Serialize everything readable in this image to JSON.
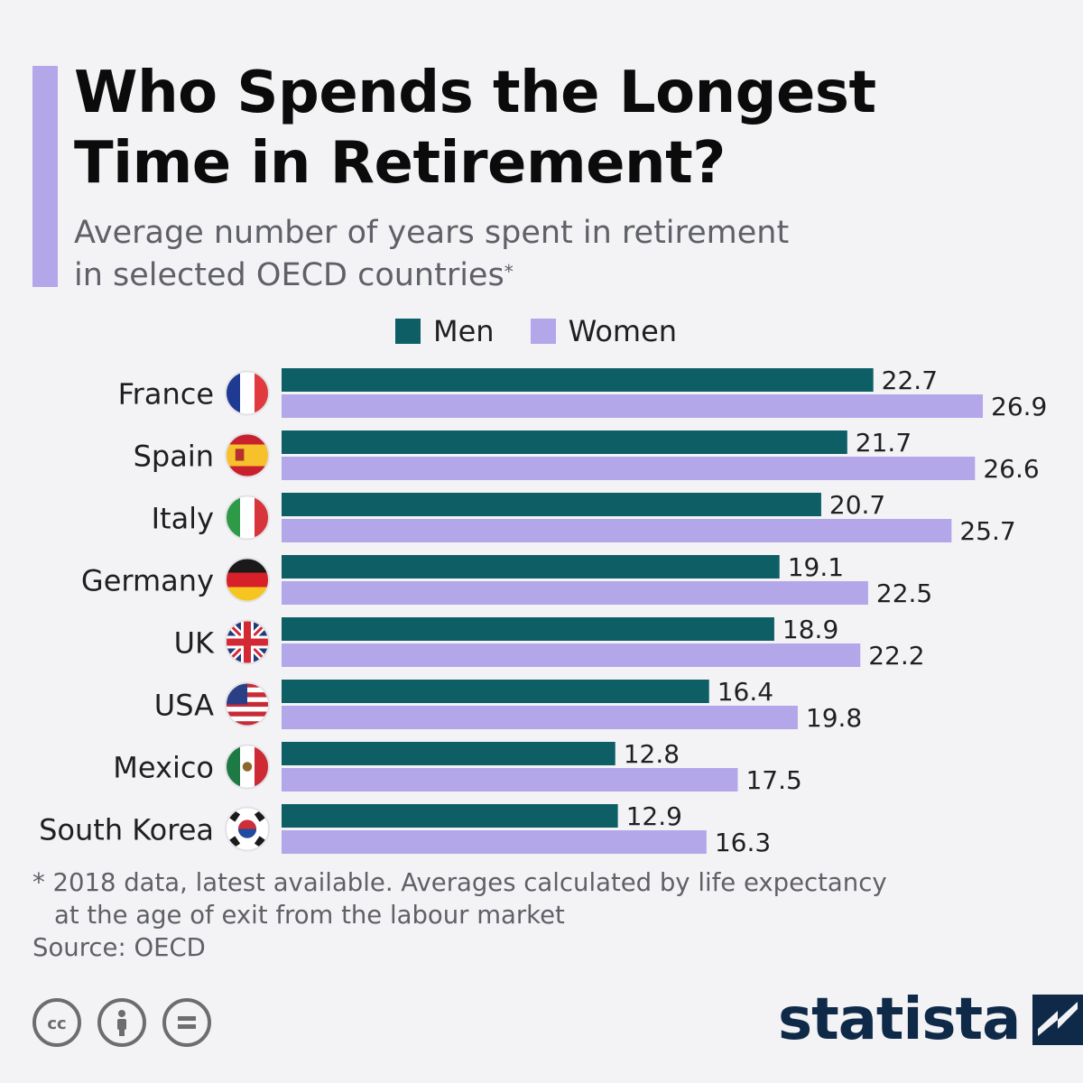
{
  "header": {
    "title_line1": "Who Spends the Longest",
    "title_line2": "Time in Retirement?",
    "subtitle_line1": "Average number of years spent in retirement",
    "subtitle_line2": "in selected OECD countries",
    "subtitle_marker": "*"
  },
  "colors": {
    "men": "#0e5e66",
    "women": "#b3a6e9",
    "accent": "#b3a6e9",
    "brand": "#0f2a49"
  },
  "chart_data": {
    "type": "bar",
    "orientation": "horizontal",
    "categories": [
      "France",
      "Spain",
      "Italy",
      "Germany",
      "UK",
      "USA",
      "Mexico",
      "South Korea"
    ],
    "series": [
      {
        "name": "Men",
        "values": [
          22.7,
          21.7,
          20.7,
          19.1,
          18.9,
          16.4,
          12.8,
          12.9
        ]
      },
      {
        "name": "Women",
        "values": [
          26.9,
          26.6,
          25.7,
          22.5,
          22.2,
          19.8,
          17.5,
          16.3
        ]
      }
    ],
    "flags": [
      "france-flag-icon",
      "spain-flag-icon",
      "italy-flag-icon",
      "germany-flag-icon",
      "uk-flag-icon",
      "usa-flag-icon",
      "mexico-flag-icon",
      "south-korea-flag-icon"
    ],
    "xlim": [
      0,
      27
    ],
    "legend_position": "top",
    "grid": false
  },
  "footer": {
    "note_line1": "* 2018 data, latest available. Averages calculated by life expectancy",
    "note_line2": "at the age of exit from the labour market",
    "source": "Source: OECD",
    "brand": "statista",
    "license_icons": [
      "cc-icon",
      "attribution-icon",
      "no-derivatives-icon"
    ]
  }
}
